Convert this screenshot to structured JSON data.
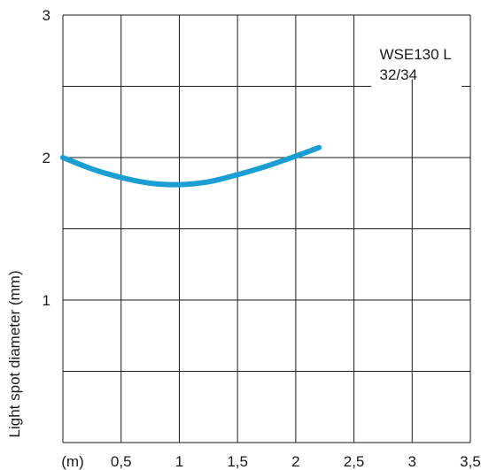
{
  "chart_data": {
    "type": "line",
    "title": "",
    "ylabel": "Light spot diameter (mm)",
    "x_unit_label": "(m)",
    "xlim": [
      0,
      3.5
    ],
    "ylim": [
      0,
      3
    ],
    "x_ticks": [
      0.5,
      1,
      1.5,
      2,
      2.5,
      3,
      3.5
    ],
    "x_tick_labels": [
      "0,5",
      "1",
      "1,5",
      "2",
      "2,5",
      "3",
      "3,5"
    ],
    "y_gridlines": [
      0.5,
      1,
      1.5,
      2,
      2.5,
      3
    ],
    "y_tick_labels": [
      {
        "value": 1,
        "label": "1"
      },
      {
        "value": 2,
        "label": "2"
      },
      {
        "value": 3,
        "label": "3"
      }
    ],
    "grid": true,
    "series": [
      {
        "color": "#1a9ed4",
        "x": [
          0,
          0.25,
          0.5,
          0.75,
          1.0,
          1.25,
          1.5,
          1.75,
          2.0,
          2.2
        ],
        "y": [
          2.0,
          1.92,
          1.86,
          1.82,
          1.81,
          1.83,
          1.88,
          1.94,
          2.01,
          2.07
        ]
      }
    ],
    "annotation": {
      "lines": [
        "WSE130 L",
        "32/34"
      ],
      "position": "top-right"
    }
  }
}
